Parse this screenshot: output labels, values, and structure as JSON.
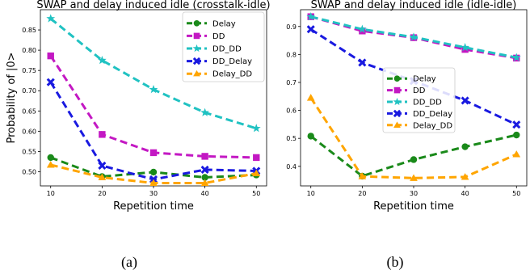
{
  "chart_data": [
    {
      "type": "line",
      "title": "SWAP and delay induced idle (crosstalk-idle)",
      "xlabel": "Repetition time",
      "ylabel": "Probability of |0>",
      "x": [
        10,
        20,
        30,
        40,
        50
      ],
      "xticks": [
        "10",
        "20",
        "30",
        "40",
        "50"
      ],
      "yticks": [
        "0.50",
        "0.55",
        "0.60",
        "0.65",
        "0.70",
        "0.75",
        "0.80",
        "0.85"
      ],
      "xlim": [
        8,
        52
      ],
      "ylim": [
        0.465,
        0.9
      ],
      "grid": false,
      "legend_position": "top-right",
      "caption": "(a)",
      "series": [
        {
          "name": "Delay",
          "color": "#1a8a1a",
          "marker": "circle",
          "values": [
            0.535,
            0.488,
            0.499,
            0.486,
            0.492
          ]
        },
        {
          "name": "DD",
          "color": "#c318c3",
          "marker": "square",
          "values": [
            0.786,
            0.592,
            0.547,
            0.538,
            0.535
          ]
        },
        {
          "name": "DD_DD",
          "color": "#20c2c2",
          "marker": "star",
          "values": [
            0.878,
            0.775,
            0.703,
            0.646,
            0.607
          ]
        },
        {
          "name": "DD_Delay",
          "color": "#1a1ae0",
          "marker": "x",
          "values": [
            0.721,
            0.515,
            0.481,
            0.505,
            0.502
          ]
        },
        {
          "name": "Delay_DD",
          "color": "#ffa500",
          "marker": "triangle",
          "values": [
            0.517,
            0.486,
            0.472,
            0.472,
            0.496
          ]
        }
      ]
    },
    {
      "type": "line",
      "title": "SWAP and delay induced idle (idle-idle)",
      "xlabel": "Repetition time",
      "ylabel": "",
      "x": [
        10,
        20,
        30,
        40,
        50
      ],
      "xticks": [
        "10",
        "20",
        "30",
        "40",
        "50"
      ],
      "yticks": [
        "0.4",
        "0.5",
        "0.6",
        "0.7",
        "0.8",
        "0.9"
      ],
      "xlim": [
        8,
        52
      ],
      "ylim": [
        0.33,
        0.96
      ],
      "grid": false,
      "legend_position": "center",
      "caption": "(b)",
      "series": [
        {
          "name": "Delay",
          "color": "#1a8a1a",
          "marker": "circle",
          "values": [
            0.508,
            0.365,
            0.424,
            0.47,
            0.512
          ]
        },
        {
          "name": "DD",
          "color": "#c318c3",
          "marker": "square",
          "values": [
            0.935,
            0.884,
            0.86,
            0.818,
            0.787
          ]
        },
        {
          "name": "DD_DD",
          "color": "#20c2c2",
          "marker": "star",
          "values": [
            0.935,
            0.89,
            0.862,
            0.825,
            0.789
          ]
        },
        {
          "name": "DD_Delay",
          "color": "#1a1ae0",
          "marker": "x",
          "values": [
            0.89,
            0.771,
            0.705,
            0.635,
            0.549
          ]
        },
        {
          "name": "Delay_DD",
          "color": "#ffa500",
          "marker": "triangle",
          "values": [
            0.645,
            0.364,
            0.358,
            0.362,
            0.443
          ]
        }
      ]
    }
  ]
}
